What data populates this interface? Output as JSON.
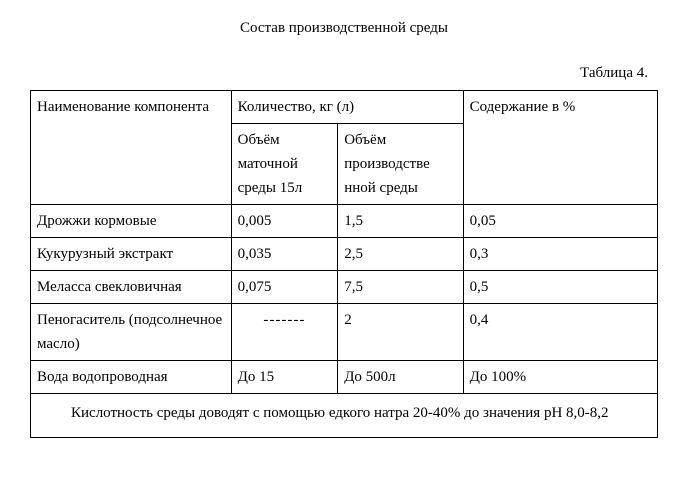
{
  "title": "Состав производственной среды",
  "table_label": "Таблица 4.",
  "headers": {
    "component": "Наименование компонента",
    "qty_group": "Количество, кг (л)",
    "vol1": "Объём маточной среды 15л",
    "vol2": "Объём производстве нной среды",
    "pct": "Содержание в %"
  },
  "rows": [
    {
      "name": "Дрожжи кормовые",
      "v1": "0,005",
      "v2": "1,5",
      "pct": "0,05"
    },
    {
      "name": "Кукурузный экстракт",
      "v1": "0,035",
      "v2": "2,5",
      "pct": "0,3"
    },
    {
      "name": "Меласса свекловичная",
      "v1": "0,075",
      "v2": "7,5",
      "pct": "0,5"
    },
    {
      "name": "Пеногаситель (подсолнечное масло)",
      "v1": "-------",
      "v2": "2",
      "pct": "0,4",
      "dash": true
    },
    {
      "name": "Вода водопроводная",
      "v1": "До 15",
      "v2": "До 500л",
      "pct": "До 100%"
    }
  ],
  "note": "Кислотность среды доводят с помощью едкого натра 20-40% до значения рН 8,0-8,2"
}
